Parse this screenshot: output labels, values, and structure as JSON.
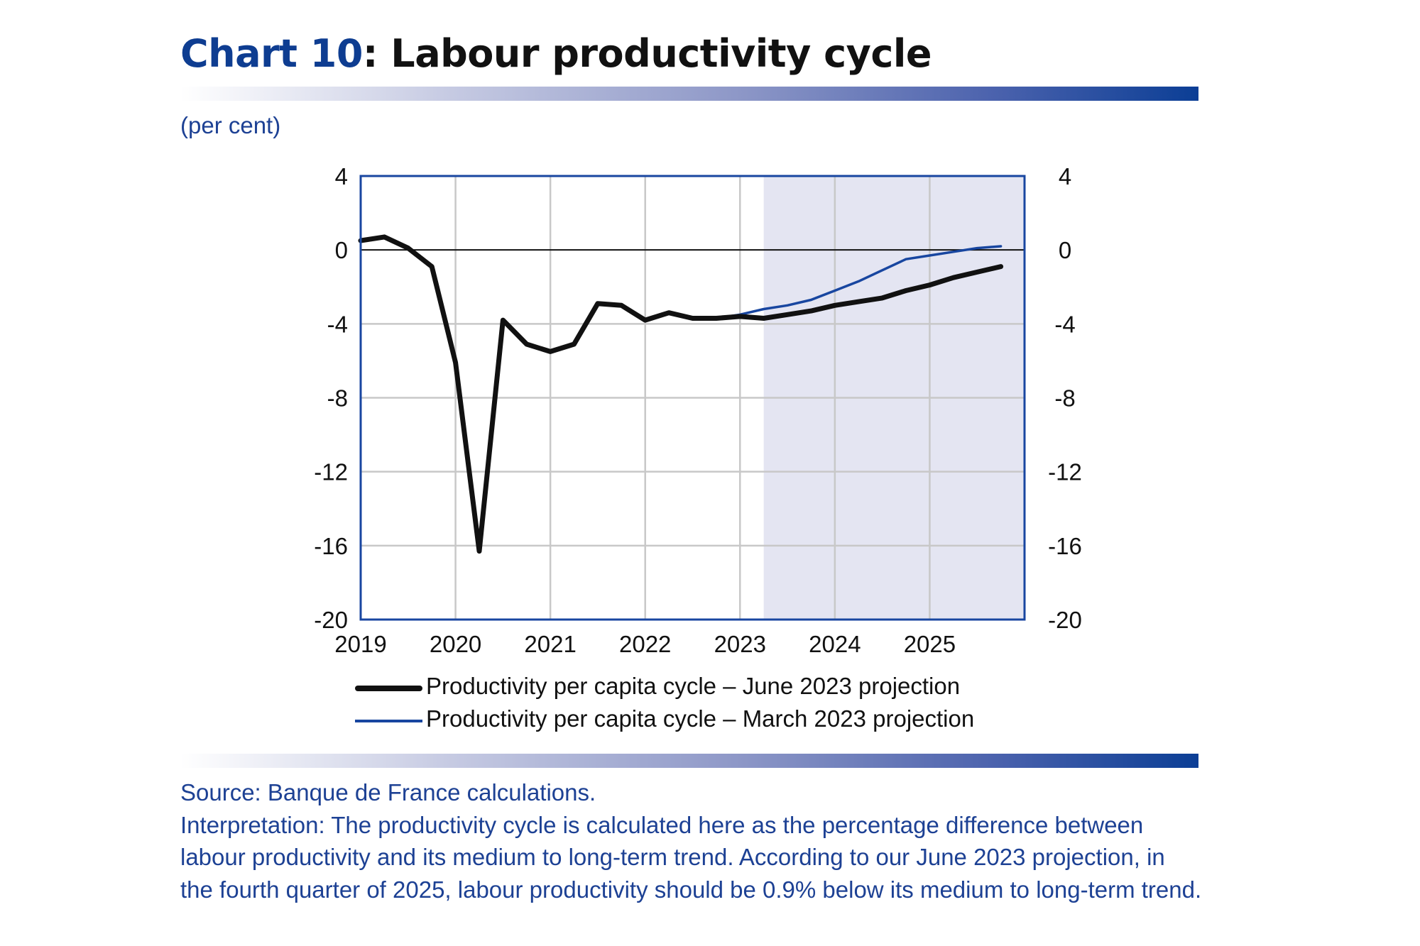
{
  "title": {
    "number": "Chart 10",
    "text": ": Labour productivity cycle"
  },
  "unit": "(per cent)",
  "legend": [
    "Productivity per capita cycle – June 2023 projection",
    "Productivity per capita cycle – March 2023 projection"
  ],
  "source": "Source: Banque de France calculations.",
  "interpretation": "Interpretation: The productivity cycle is calculated here as the percentage difference between labour productivity and its medium to long-term trend. According to our June 2023 projection, in the fourth quarter of 2025, labour productivity should be 0.9% below its medium to long-term trend.",
  "colors": {
    "june": "#111111",
    "march": "#1846a0",
    "axis": "#1846a0",
    "projection_shade": "#e4e5f2",
    "text_blue": "#1d4194"
  },
  "chart_data": {
    "type": "line",
    "x": [
      "2019-Q1",
      "2019-Q2",
      "2019-Q3",
      "2019-Q4",
      "2020-Q1",
      "2020-Q2",
      "2020-Q3",
      "2020-Q4",
      "2021-Q1",
      "2021-Q2",
      "2021-Q3",
      "2021-Q4",
      "2022-Q1",
      "2022-Q2",
      "2022-Q3",
      "2022-Q4",
      "2023-Q1",
      "2023-Q2",
      "2023-Q3",
      "2023-Q4",
      "2024-Q1",
      "2024-Q2",
      "2024-Q3",
      "2024-Q4",
      "2025-Q1",
      "2025-Q2",
      "2025-Q3",
      "2025-Q4"
    ],
    "x_tick_labels": [
      "2019",
      "2020",
      "2021",
      "2022",
      "2023",
      "2024",
      "2025"
    ],
    "y_tick_labels": [
      "4",
      "0",
      "-4",
      "-8",
      "-12",
      "-16",
      "-20"
    ],
    "ylim": [
      -20,
      4
    ],
    "y_ticks": [
      4,
      0,
      -4,
      -8,
      -12,
      -16,
      -20
    ],
    "secondary_y_axis": true,
    "projection_shading_from": "2023-Q2",
    "grid": true,
    "legend_position": "bottom",
    "series": [
      {
        "name": "Productivity per capita cycle – June 2023 projection",
        "values": [
          0.5,
          0.7,
          0.1,
          -0.9,
          -6.1,
          -16.3,
          -3.8,
          -5.1,
          -5.5,
          -5.1,
          -2.9,
          -3.0,
          -3.8,
          -3.4,
          -3.7,
          -3.7,
          -3.6,
          -3.7,
          -3.5,
          -3.3,
          -3.0,
          -2.8,
          -2.6,
          -2.2,
          -1.9,
          -1.5,
          -1.2,
          -0.9
        ]
      },
      {
        "name": "Productivity per capita cycle – March 2023 projection",
        "values": [
          null,
          null,
          null,
          null,
          null,
          null,
          null,
          null,
          null,
          null,
          null,
          null,
          null,
          null,
          -3.7,
          -3.7,
          -3.5,
          -3.2,
          -3.0,
          -2.7,
          -2.2,
          -1.7,
          -1.1,
          -0.5,
          -0.3,
          -0.1,
          0.1,
          0.2
        ]
      }
    ]
  }
}
